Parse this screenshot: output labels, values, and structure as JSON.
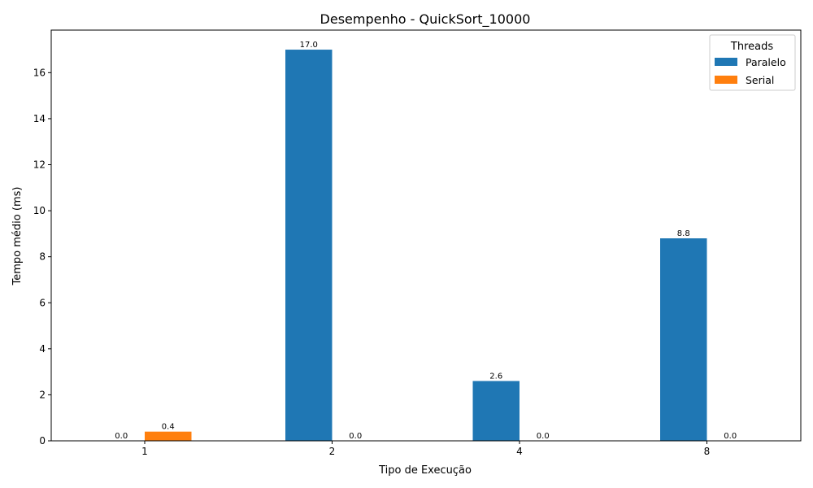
{
  "chart_data": {
    "type": "bar",
    "title": "Desempenho - QuickSort_10000",
    "xlabel": "Tipo de Execução",
    "ylabel": "Tempo médio (ms)",
    "categories": [
      "1",
      "2",
      "4",
      "8"
    ],
    "series": [
      {
        "name": "Paralelo",
        "color": "#1f77b4",
        "values": [
          0.0,
          17.0,
          2.6,
          8.8
        ],
        "value_labels": [
          "0.0",
          "17.0",
          "2.6",
          "8.8"
        ]
      },
      {
        "name": "Serial",
        "color": "#ff7f0e",
        "values": [
          0.4,
          0.0,
          0.0,
          0.0
        ],
        "value_labels": [
          "0.4",
          "0.0",
          "0.0",
          "0.0"
        ]
      }
    ],
    "ylim": [
      0,
      17.85
    ],
    "yticks": [
      0,
      2,
      4,
      6,
      8,
      10,
      12,
      14,
      16
    ],
    "ytick_labels": [
      "0",
      "2",
      "4",
      "6",
      "8",
      "10",
      "12",
      "14",
      "16"
    ],
    "grid": false,
    "legend": {
      "title": "Threads",
      "placement": "top-right"
    }
  }
}
